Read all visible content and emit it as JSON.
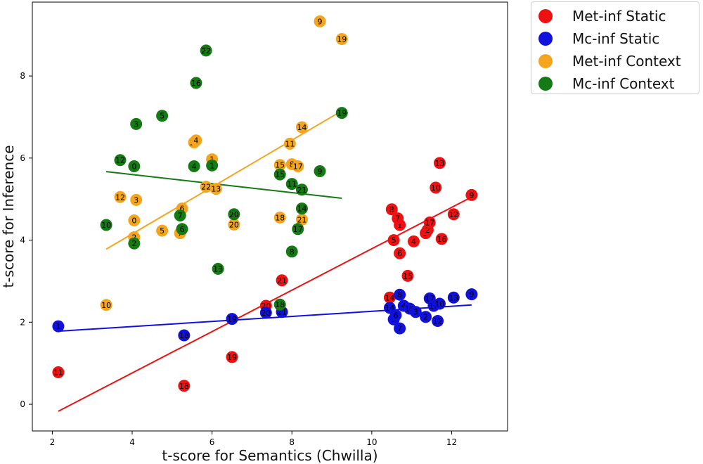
{
  "chart_data": {
    "type": "scatter",
    "xlabel": "t-score for Semantics (Chwilla)",
    "ylabel": "t-score for Inference",
    "xlim": [
      1.5,
      13.4
    ],
    "ylim": [
      -0.65,
      9.8
    ],
    "xticks": [
      2,
      4,
      6,
      8,
      10,
      12
    ],
    "yticks": [
      0,
      2,
      4,
      6,
      8
    ],
    "grid": false,
    "legend_position": "outside-top-right",
    "series": [
      {
        "name": "Met-inf Static",
        "color": "#ee1111",
        "points": [
          {
            "x": 2.15,
            "y": 0.78,
            "label": "11"
          },
          {
            "x": 5.3,
            "y": 0.45,
            "label": "18"
          },
          {
            "x": 6.5,
            "y": 1.15,
            "label": "19"
          },
          {
            "x": 7.35,
            "y": 2.4,
            "label": "20"
          },
          {
            "x": 7.75,
            "y": 3.02,
            "label": "21"
          },
          {
            "x": 10.45,
            "y": 2.6,
            "label": "14"
          },
          {
            "x": 10.9,
            "y": 3.13,
            "label": "15"
          },
          {
            "x": 10.7,
            "y": 3.68,
            "label": "6"
          },
          {
            "x": 10.55,
            "y": 4.0,
            "label": "5"
          },
          {
            "x": 11.05,
            "y": 3.97,
            "label": "4"
          },
          {
            "x": 11.35,
            "y": 4.17,
            "label": "3"
          },
          {
            "x": 11.4,
            "y": 4.25,
            "label": "2"
          },
          {
            "x": 11.75,
            "y": 4.03,
            "label": "16"
          },
          {
            "x": 10.7,
            "y": 4.37,
            "label": "1"
          },
          {
            "x": 10.65,
            "y": 4.53,
            "label": "7"
          },
          {
            "x": 10.5,
            "y": 4.75,
            "label": "8"
          },
          {
            "x": 11.45,
            "y": 4.43,
            "label": "17"
          },
          {
            "x": 12.05,
            "y": 4.63,
            "label": "12"
          },
          {
            "x": 11.6,
            "y": 5.28,
            "label": "10"
          },
          {
            "x": 11.7,
            "y": 5.88,
            "label": "13"
          },
          {
            "x": 12.5,
            "y": 5.1,
            "label": "9"
          }
        ],
        "trend": {
          "x1": 2.15,
          "y1": -0.17,
          "x2": 12.5,
          "y2": 5.05
        }
      },
      {
        "name": "Mc-inf Static",
        "color": "#1111dd",
        "points": [
          {
            "x": 2.15,
            "y": 1.9,
            "label": "1"
          },
          {
            "x": 5.3,
            "y": 1.68,
            "label": "18"
          },
          {
            "x": 6.5,
            "y": 2.08,
            "label": "19"
          },
          {
            "x": 7.35,
            "y": 2.23,
            "label": "20"
          },
          {
            "x": 7.75,
            "y": 2.25,
            "label": "21"
          },
          {
            "x": 10.45,
            "y": 2.35,
            "label": "14"
          },
          {
            "x": 10.55,
            "y": 2.07,
            "label": "5"
          },
          {
            "x": 10.6,
            "y": 2.17,
            "label": "6"
          },
          {
            "x": 10.7,
            "y": 1.85,
            "label": "7"
          },
          {
            "x": 10.7,
            "y": 2.67,
            "label": "8"
          },
          {
            "x": 10.8,
            "y": 2.4,
            "label": "4"
          },
          {
            "x": 10.95,
            "y": 2.33,
            "label": "15"
          },
          {
            "x": 11.1,
            "y": 2.25,
            "label": "3"
          },
          {
            "x": 11.35,
            "y": 2.13,
            "label": "2"
          },
          {
            "x": 11.45,
            "y": 2.58,
            "label": "17"
          },
          {
            "x": 11.55,
            "y": 2.4,
            "label": "16"
          },
          {
            "x": 11.7,
            "y": 2.45,
            "label": "10"
          },
          {
            "x": 11.65,
            "y": 2.03,
            "label": "12"
          },
          {
            "x": 12.05,
            "y": 2.6,
            "label": "13"
          },
          {
            "x": 12.5,
            "y": 2.68,
            "label": "9"
          }
        ],
        "trend": {
          "x1": 2.15,
          "y1": 1.78,
          "x2": 12.5,
          "y2": 2.42
        }
      },
      {
        "name": "Met-inf Context",
        "color": "#f5a41d",
        "points": [
          {
            "x": 3.35,
            "y": 2.42,
            "label": "10"
          },
          {
            "x": 3.7,
            "y": 5.05,
            "label": "12"
          },
          {
            "x": 4.05,
            "y": 4.07,
            "label": "2"
          },
          {
            "x": 4.05,
            "y": 4.48,
            "label": "0"
          },
          {
            "x": 4.1,
            "y": 4.98,
            "label": "3"
          },
          {
            "x": 4.75,
            "y": 4.23,
            "label": "5"
          },
          {
            "x": 5.2,
            "y": 4.17,
            "label": "7"
          },
          {
            "x": 5.25,
            "y": 4.77,
            "label": "6"
          },
          {
            "x": 5.55,
            "y": 6.38,
            "label": "16"
          },
          {
            "x": 5.6,
            "y": 6.43,
            "label": "4"
          },
          {
            "x": 6.0,
            "y": 5.97,
            "label": "1"
          },
          {
            "x": 5.85,
            "y": 5.3,
            "label": "22"
          },
          {
            "x": 6.1,
            "y": 5.25,
            "label": "13"
          },
          {
            "x": 6.55,
            "y": 4.38,
            "label": "20"
          },
          {
            "x": 7.7,
            "y": 5.83,
            "label": "15"
          },
          {
            "x": 7.7,
            "y": 4.55,
            "label": "18"
          },
          {
            "x": 7.95,
            "y": 6.35,
            "label": "11"
          },
          {
            "x": 8.0,
            "y": 5.85,
            "label": "8"
          },
          {
            "x": 8.15,
            "y": 5.8,
            "label": "17"
          },
          {
            "x": 8.25,
            "y": 4.5,
            "label": "21"
          },
          {
            "x": 8.25,
            "y": 6.75,
            "label": "14"
          },
          {
            "x": 8.7,
            "y": 9.33,
            "label": "9"
          },
          {
            "x": 9.25,
            "y": 8.9,
            "label": "19"
          }
        ],
        "trend": {
          "x1": 3.35,
          "y1": 3.78,
          "x2": 9.25,
          "y2": 7.15
        }
      },
      {
        "name": "Mc-inf Context",
        "color": "#147a14",
        "points": [
          {
            "x": 3.35,
            "y": 4.37,
            "label": "10"
          },
          {
            "x": 3.7,
            "y": 5.95,
            "label": "12"
          },
          {
            "x": 4.05,
            "y": 5.8,
            "label": "0"
          },
          {
            "x": 4.05,
            "y": 3.92,
            "label": "2"
          },
          {
            "x": 4.1,
            "y": 6.83,
            "label": "3"
          },
          {
            "x": 4.75,
            "y": 7.03,
            "label": "5"
          },
          {
            "x": 5.2,
            "y": 4.6,
            "label": "7"
          },
          {
            "x": 5.25,
            "y": 4.27,
            "label": "6"
          },
          {
            "x": 5.55,
            "y": 5.8,
            "label": "4"
          },
          {
            "x": 5.6,
            "y": 7.83,
            "label": "16"
          },
          {
            "x": 5.85,
            "y": 8.62,
            "label": "22"
          },
          {
            "x": 6.0,
            "y": 5.82,
            "label": "1"
          },
          {
            "x": 6.15,
            "y": 3.3,
            "label": "13"
          },
          {
            "x": 6.55,
            "y": 4.63,
            "label": "20"
          },
          {
            "x": 7.7,
            "y": 5.6,
            "label": "15"
          },
          {
            "x": 7.7,
            "y": 2.43,
            "label": "18"
          },
          {
            "x": 8.0,
            "y": 5.37,
            "label": "11"
          },
          {
            "x": 8.0,
            "y": 3.72,
            "label": "8"
          },
          {
            "x": 8.15,
            "y": 4.27,
            "label": "17"
          },
          {
            "x": 8.25,
            "y": 4.77,
            "label": "14"
          },
          {
            "x": 8.25,
            "y": 5.23,
            "label": "21"
          },
          {
            "x": 8.7,
            "y": 5.68,
            "label": "9"
          },
          {
            "x": 9.25,
            "y": 7.1,
            "label": "19"
          }
        ],
        "trend": {
          "x1": 3.35,
          "y1": 5.67,
          "x2": 9.25,
          "y2": 5.02
        }
      }
    ]
  }
}
